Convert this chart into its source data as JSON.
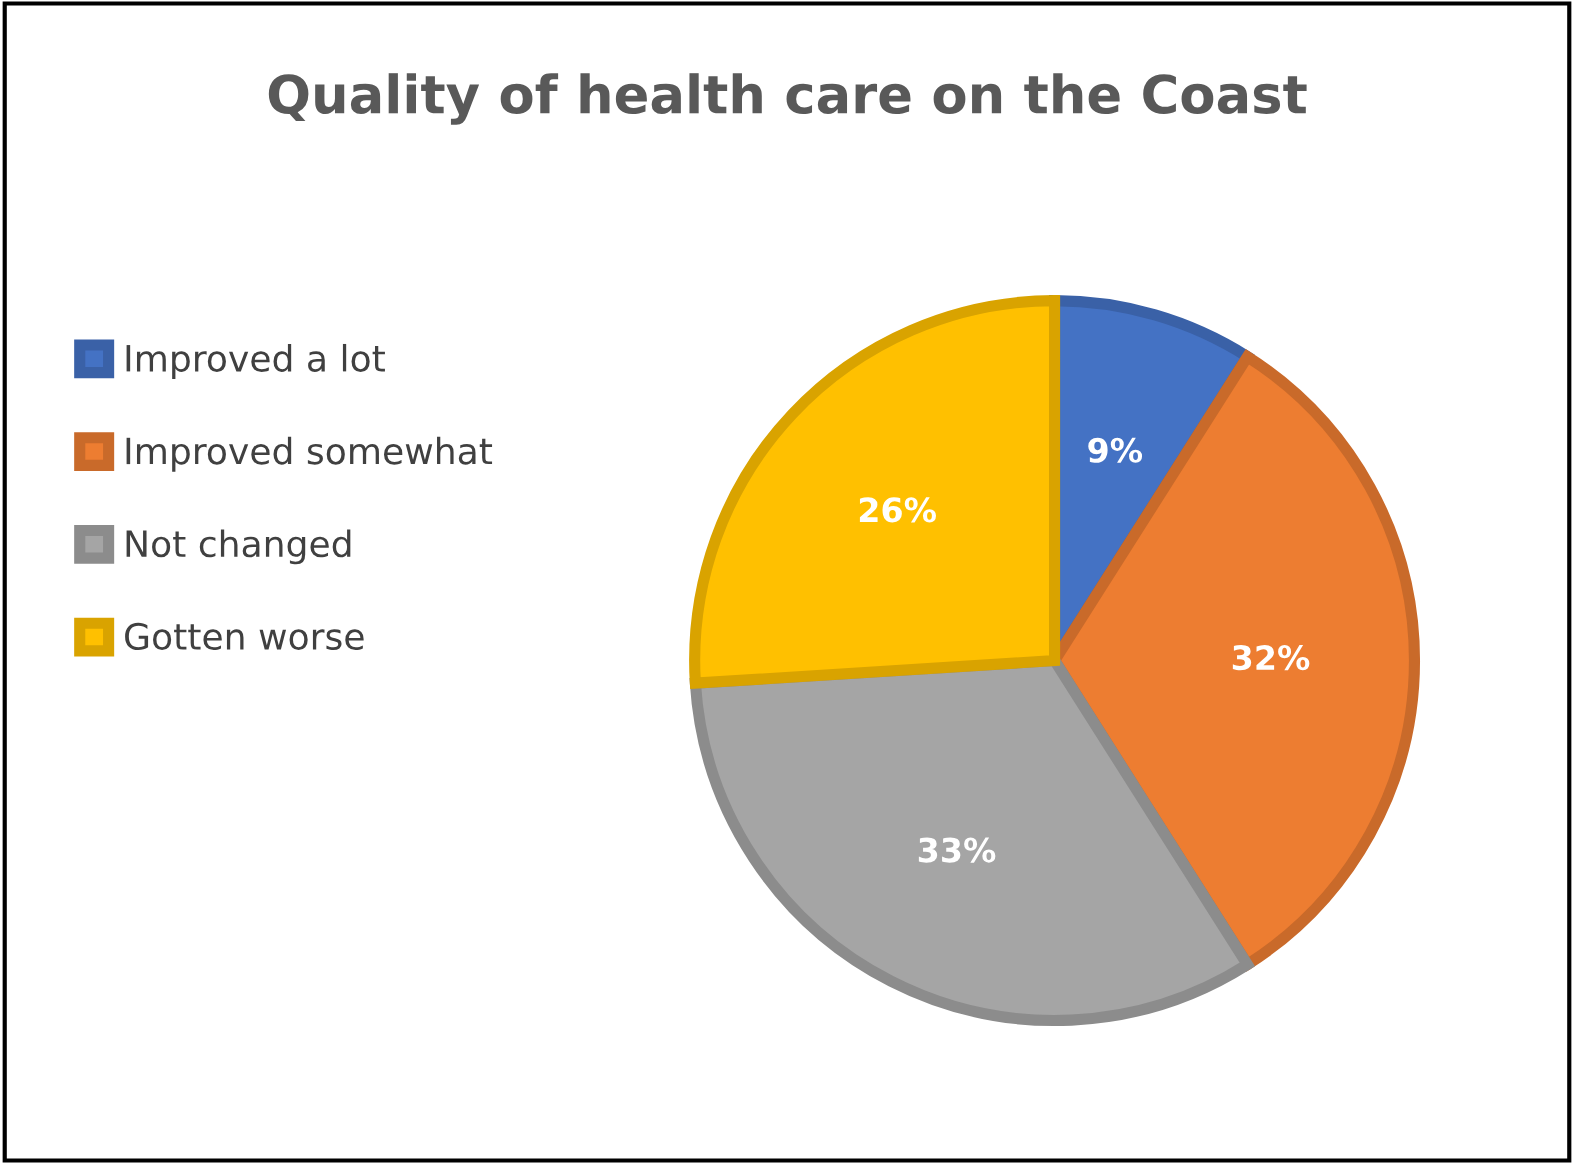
{
  "chart_data": {
    "type": "pie",
    "title": "Quality of health care on the Coast",
    "categories": [
      "Improved a lot",
      "Improved somewhat",
      "Not changed",
      "Gotten worse"
    ],
    "values": [
      9,
      32,
      33,
      26
    ],
    "colors": [
      "#4472c4",
      "#ed7d31",
      "#a5a5a5",
      "#ffc000"
    ],
    "value_labels": [
      "9%",
      "32%",
      "33%",
      "26%"
    ],
    "legend": "left"
  }
}
